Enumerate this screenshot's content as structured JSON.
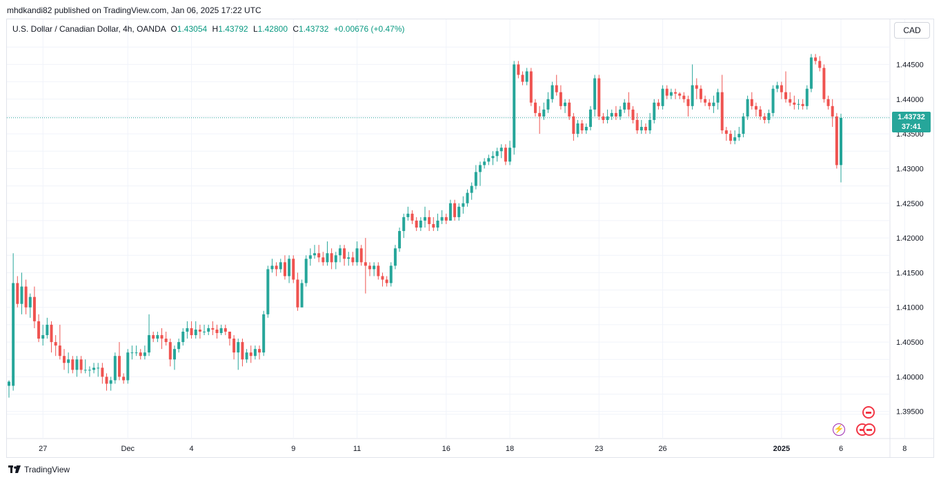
{
  "header": {
    "published_line": "mhdkandi82 published on TradingView.com, Jan 06, 2025 17:22 UTC"
  },
  "symbol": {
    "name": "U.S. Dollar / Canadian Dollar, 4h, OANDA",
    "open_label": "O",
    "open": "1.43054",
    "high_label": "H",
    "high": "1.43792",
    "low_label": "L",
    "low": "1.42800",
    "close_label": "C",
    "close": "1.43732",
    "change": "+0.00676 (+0.47%)"
  },
  "toolbar": {
    "currency": "CAD"
  },
  "last_price": {
    "price": "1.43732",
    "countdown": "37:41"
  },
  "footer": {
    "logo_text": "TradingView"
  },
  "colors": {
    "up": "#26a69a",
    "down": "#ef5350",
    "grid": "#f0f3fa",
    "text": "#131722"
  },
  "icons": [
    "lightning-icon",
    "canada-flag-icon"
  ],
  "chart_data": {
    "type": "candlestick",
    "y_ticks": [
      "1.39500",
      "1.40000",
      "1.40500",
      "1.41000",
      "1.41500",
      "1.42000",
      "1.42500",
      "1.43000",
      "1.43500",
      "1.44000",
      "1.44500"
    ],
    "y_tick_values": [
      1.395,
      1.4,
      1.405,
      1.41,
      1.415,
      1.42,
      1.425,
      1.43,
      1.435,
      1.44,
      1.445
    ],
    "ylim": [
      1.3911,
      1.4515
    ],
    "x_ticks": [
      {
        "label": "27",
        "index": 8
      },
      {
        "label": "Dec",
        "index": 28
      },
      {
        "label": "4",
        "index": 43
      },
      {
        "label": "9",
        "index": 67
      },
      {
        "label": "11",
        "index": 82
      },
      {
        "label": "16",
        "index": 103
      },
      {
        "label": "18",
        "index": 118
      },
      {
        "label": "23",
        "index": 139
      },
      {
        "label": "26",
        "index": 154
      },
      {
        "label": "2025",
        "index": 182
      },
      {
        "label": "6",
        "index": 196
      },
      {
        "label": "8",
        "index": 211
      }
    ],
    "x_count": 213,
    "last_price": 1.43732,
    "candles": [
      [
        1.3987,
        1.3993,
        1.397,
        1.3995
      ],
      [
        1.3987,
        1.4135,
        1.398,
        1.4178
      ],
      [
        1.4135,
        1.4105,
        1.41,
        1.4145
      ],
      [
        1.4105,
        1.413,
        1.409,
        1.415
      ],
      [
        1.413,
        1.41,
        1.409,
        1.414
      ],
      [
        1.41,
        1.4115,
        1.4085,
        1.412
      ],
      [
        1.4115,
        1.408,
        1.407,
        1.413
      ],
      [
        1.408,
        1.4055,
        1.405,
        1.409
      ],
      [
        1.4055,
        1.406,
        1.4045,
        1.4075
      ],
      [
        1.406,
        1.4075,
        1.4055,
        1.4085
      ],
      [
        1.4075,
        1.405,
        1.4035,
        1.408
      ],
      [
        1.405,
        1.4045,
        1.403,
        1.406
      ],
      [
        1.4045,
        1.403,
        1.4025,
        1.4075
      ],
      [
        1.403,
        1.402,
        1.401,
        1.404
      ],
      [
        1.402,
        1.4025,
        1.4005,
        1.4035
      ],
      [
        1.4025,
        1.401,
        1.4005,
        1.403
      ],
      [
        1.401,
        1.4025,
        1.4,
        1.403
      ],
      [
        1.4025,
        1.401,
        1.4005,
        1.403
      ],
      [
        1.401,
        1.401,
        1.4005,
        1.4025
      ],
      [
        1.401,
        1.401,
        1.4,
        1.4015
      ],
      [
        1.401,
        1.4013,
        1.4005,
        1.402
      ],
      [
        1.4013,
        1.4013,
        1.4,
        1.402
      ],
      [
        1.4013,
        1.4,
        1.399,
        1.402
      ],
      [
        1.4,
        1.399,
        1.398,
        1.4005
      ],
      [
        1.399,
        1.3995,
        1.398,
        1.4
      ],
      [
        1.3995,
        1.403,
        1.399,
        1.4035
      ],
      [
        1.403,
        1.4,
        1.3995,
        1.405
      ],
      [
        1.4,
        1.3995,
        1.399,
        1.4005
      ],
      [
        1.3995,
        1.4035,
        1.399,
        1.404
      ],
      [
        1.4035,
        1.4035,
        1.4025,
        1.4045
      ],
      [
        1.4035,
        1.4035,
        1.403,
        1.4045
      ],
      [
        1.4035,
        1.403,
        1.4025,
        1.404
      ],
      [
        1.403,
        1.4035,
        1.4025,
        1.4045
      ],
      [
        1.4035,
        1.406,
        1.403,
        1.409
      ],
      [
        1.406,
        1.4055,
        1.405,
        1.4065
      ],
      [
        1.4055,
        1.406,
        1.405,
        1.4065
      ],
      [
        1.406,
        1.4055,
        1.404,
        1.407
      ],
      [
        1.4055,
        1.405,
        1.4045,
        1.4065
      ],
      [
        1.405,
        1.4025,
        1.4015,
        1.4055
      ],
      [
        1.4025,
        1.404,
        1.401,
        1.4045
      ],
      [
        1.404,
        1.405,
        1.4035,
        1.4055
      ],
      [
        1.405,
        1.4065,
        1.4045,
        1.407
      ],
      [
        1.4065,
        1.407,
        1.4055,
        1.408
      ],
      [
        1.407,
        1.406,
        1.4055,
        1.408
      ],
      [
        1.406,
        1.4068,
        1.4055,
        1.408
      ],
      [
        1.4068,
        1.4065,
        1.4055,
        1.4075
      ],
      [
        1.4065,
        1.4065,
        1.406,
        1.4075
      ],
      [
        1.4065,
        1.407,
        1.406,
        1.4075
      ],
      [
        1.407,
        1.4068,
        1.406,
        1.408
      ],
      [
        1.4068,
        1.4063,
        1.4055,
        1.4075
      ],
      [
        1.4063,
        1.407,
        1.406,
        1.4075
      ],
      [
        1.407,
        1.4065,
        1.406,
        1.4075
      ],
      [
        1.4065,
        1.4055,
        1.4045,
        1.4065
      ],
      [
        1.4055,
        1.4035,
        1.4025,
        1.406
      ],
      [
        1.4035,
        1.405,
        1.401,
        1.4055
      ],
      [
        1.405,
        1.4025,
        1.4015,
        1.4055
      ],
      [
        1.4025,
        1.4035,
        1.402,
        1.404
      ],
      [
        1.4035,
        1.403,
        1.402,
        1.4045
      ],
      [
        1.403,
        1.404,
        1.4025,
        1.4045
      ],
      [
        1.404,
        1.4035,
        1.4025,
        1.4045
      ],
      [
        1.4035,
        1.409,
        1.403,
        1.4095
      ],
      [
        1.409,
        1.4155,
        1.4085,
        1.416
      ],
      [
        1.4155,
        1.416,
        1.415,
        1.417
      ],
      [
        1.416,
        1.4155,
        1.4145,
        1.4165
      ],
      [
        1.4155,
        1.4165,
        1.415,
        1.417
      ],
      [
        1.4165,
        1.4145,
        1.414,
        1.4175
      ],
      [
        1.4145,
        1.417,
        1.4135,
        1.4175
      ],
      [
        1.417,
        1.414,
        1.4135,
        1.4175
      ],
      [
        1.414,
        1.41,
        1.4095,
        1.415
      ],
      [
        1.41,
        1.4135,
        1.41,
        1.414
      ],
      [
        1.4135,
        1.417,
        1.413,
        1.4175
      ],
      [
        1.417,
        1.4175,
        1.416,
        1.4185
      ],
      [
        1.4175,
        1.4178,
        1.417,
        1.419
      ],
      [
        1.4178,
        1.4172,
        1.4165,
        1.419
      ],
      [
        1.4172,
        1.4165,
        1.416,
        1.418
      ],
      [
        1.4165,
        1.4178,
        1.416,
        1.4195
      ],
      [
        1.4178,
        1.4165,
        1.4155,
        1.4185
      ],
      [
        1.4165,
        1.4175,
        1.4155,
        1.418
      ],
      [
        1.4175,
        1.4185,
        1.4165,
        1.419
      ],
      [
        1.4185,
        1.417,
        1.416,
        1.419
      ],
      [
        1.417,
        1.4172,
        1.416,
        1.418
      ],
      [
        1.4172,
        1.4165,
        1.416,
        1.418
      ],
      [
        1.4165,
        1.4185,
        1.416,
        1.4195
      ],
      [
        1.4185,
        1.4165,
        1.416,
        1.419
      ],
      [
        1.4165,
        1.416,
        1.412,
        1.42
      ],
      [
        1.416,
        1.4155,
        1.4145,
        1.4165
      ],
      [
        1.4155,
        1.416,
        1.4145,
        1.4165
      ],
      [
        1.416,
        1.4145,
        1.414,
        1.4165
      ],
      [
        1.4145,
        1.414,
        1.413,
        1.415
      ],
      [
        1.414,
        1.4135,
        1.413,
        1.4145
      ],
      [
        1.4135,
        1.416,
        1.413,
        1.4165
      ],
      [
        1.416,
        1.4185,
        1.4155,
        1.419
      ],
      [
        1.4185,
        1.421,
        1.418,
        1.4215
      ],
      [
        1.421,
        1.423,
        1.42,
        1.4235
      ],
      [
        1.423,
        1.4235,
        1.4225,
        1.4245
      ],
      [
        1.4235,
        1.4225,
        1.422,
        1.424
      ],
      [
        1.4225,
        1.4215,
        1.421,
        1.423
      ],
      [
        1.4215,
        1.4225,
        1.421,
        1.423
      ],
      [
        1.4225,
        1.423,
        1.4215,
        1.4245
      ],
      [
        1.423,
        1.422,
        1.421,
        1.424
      ],
      [
        1.422,
        1.4215,
        1.421,
        1.423
      ],
      [
        1.4215,
        1.4225,
        1.421,
        1.4235
      ],
      [
        1.4225,
        1.423,
        1.422,
        1.424
      ],
      [
        1.423,
        1.4225,
        1.422,
        1.4235
      ],
      [
        1.4225,
        1.425,
        1.4225,
        1.4255
      ],
      [
        1.425,
        1.423,
        1.4225,
        1.4255
      ],
      [
        1.423,
        1.4245,
        1.4225,
        1.425
      ],
      [
        1.4245,
        1.425,
        1.4235,
        1.426
      ],
      [
        1.425,
        1.4265,
        1.4245,
        1.427
      ],
      [
        1.4265,
        1.4275,
        1.4255,
        1.428
      ],
      [
        1.4275,
        1.4295,
        1.427,
        1.4305
      ],
      [
        1.4295,
        1.4305,
        1.4275,
        1.431
      ],
      [
        1.4305,
        1.431,
        1.43,
        1.4315
      ],
      [
        1.431,
        1.4315,
        1.4305,
        1.432
      ],
      [
        1.4315,
        1.4318,
        1.4305,
        1.4325
      ],
      [
        1.4318,
        1.4325,
        1.431,
        1.433
      ],
      [
        1.4325,
        1.433,
        1.4315,
        1.4335
      ],
      [
        1.433,
        1.431,
        1.4305,
        1.4335
      ],
      [
        1.431,
        1.433,
        1.4305,
        1.434
      ],
      [
        1.433,
        1.445,
        1.432,
        1.4455
      ],
      [
        1.445,
        1.4435,
        1.443,
        1.4455
      ],
      [
        1.4435,
        1.4425,
        1.442,
        1.444
      ],
      [
        1.4425,
        1.444,
        1.442,
        1.4445
      ],
      [
        1.444,
        1.4395,
        1.439,
        1.4445
      ],
      [
        1.4395,
        1.438,
        1.4375,
        1.44
      ],
      [
        1.438,
        1.4375,
        1.435,
        1.439
      ],
      [
        1.4375,
        1.4385,
        1.437,
        1.4395
      ],
      [
        1.4385,
        1.44,
        1.438,
        1.441
      ],
      [
        1.44,
        1.442,
        1.4395,
        1.4425
      ],
      [
        1.442,
        1.441,
        1.4405,
        1.4435
      ],
      [
        1.441,
        1.439,
        1.4385,
        1.442
      ],
      [
        1.439,
        1.4395,
        1.438,
        1.44
      ],
      [
        1.4395,
        1.4375,
        1.437,
        1.44
      ],
      [
        1.4375,
        1.435,
        1.434,
        1.438
      ],
      [
        1.435,
        1.4365,
        1.4345,
        1.437
      ],
      [
        1.4365,
        1.4355,
        1.435,
        1.437
      ],
      [
        1.4355,
        1.436,
        1.435,
        1.4365
      ],
      [
        1.436,
        1.4385,
        1.4355,
        1.439
      ],
      [
        1.4385,
        1.443,
        1.4375,
        1.4435
      ],
      [
        1.443,
        1.4375,
        1.437,
        1.4435
      ],
      [
        1.4375,
        1.437,
        1.4365,
        1.438
      ],
      [
        1.437,
        1.4375,
        1.4365,
        1.4385
      ],
      [
        1.4375,
        1.438,
        1.437,
        1.4385
      ],
      [
        1.438,
        1.4375,
        1.437,
        1.439
      ],
      [
        1.4375,
        1.4385,
        1.437,
        1.439
      ],
      [
        1.4385,
        1.4395,
        1.438,
        1.44
      ],
      [
        1.4395,
        1.4385,
        1.4375,
        1.441
      ],
      [
        1.4385,
        1.437,
        1.4365,
        1.439
      ],
      [
        1.437,
        1.4355,
        1.435,
        1.438
      ],
      [
        1.4355,
        1.436,
        1.435,
        1.437
      ],
      [
        1.436,
        1.4355,
        1.435,
        1.4365
      ],
      [
        1.4355,
        1.437,
        1.435,
        1.438
      ],
      [
        1.437,
        1.4395,
        1.4365,
        1.44
      ],
      [
        1.4395,
        1.439,
        1.4385,
        1.44
      ],
      [
        1.439,
        1.4415,
        1.4385,
        1.442
      ],
      [
        1.4415,
        1.4405,
        1.44,
        1.442
      ],
      [
        1.4405,
        1.441,
        1.44,
        1.4415
      ],
      [
        1.441,
        1.4408,
        1.44,
        1.4415
      ],
      [
        1.4408,
        1.4405,
        1.44,
        1.441
      ],
      [
        1.4405,
        1.44,
        1.4395,
        1.441
      ],
      [
        1.44,
        1.439,
        1.4375,
        1.4405
      ],
      [
        1.439,
        1.442,
        1.4385,
        1.445
      ],
      [
        1.442,
        1.4415,
        1.44,
        1.443
      ],
      [
        1.4415,
        1.44,
        1.4395,
        1.442
      ],
      [
        1.44,
        1.4395,
        1.439,
        1.4405
      ],
      [
        1.4395,
        1.439,
        1.4385,
        1.44
      ],
      [
        1.439,
        1.4395,
        1.438,
        1.4405
      ],
      [
        1.4395,
        1.441,
        1.4385,
        1.4415
      ],
      [
        1.441,
        1.4355,
        1.435,
        1.4435
      ],
      [
        1.4355,
        1.435,
        1.434,
        1.436
      ],
      [
        1.435,
        1.434,
        1.4335,
        1.4355
      ],
      [
        1.434,
        1.4345,
        1.4335,
        1.4355
      ],
      [
        1.4345,
        1.435,
        1.434,
        1.436
      ],
      [
        1.435,
        1.4375,
        1.4345,
        1.438
      ],
      [
        1.4375,
        1.44,
        1.437,
        1.4405
      ],
      [
        1.44,
        1.439,
        1.4385,
        1.441
      ],
      [
        1.439,
        1.4385,
        1.4375,
        1.4395
      ],
      [
        1.4385,
        1.4375,
        1.437,
        1.439
      ],
      [
        1.4375,
        1.437,
        1.4365,
        1.438
      ],
      [
        1.437,
        1.438,
        1.4365,
        1.4385
      ],
      [
        1.438,
        1.4415,
        1.4375,
        1.442
      ],
      [
        1.4415,
        1.442,
        1.441,
        1.4425
      ],
      [
        1.442,
        1.441,
        1.44,
        1.4425
      ],
      [
        1.441,
        1.44,
        1.4395,
        1.444
      ],
      [
        1.44,
        1.4395,
        1.439,
        1.441
      ],
      [
        1.4395,
        1.4392,
        1.4385,
        1.4405
      ],
      [
        1.4392,
        1.4393,
        1.4385,
        1.44
      ],
      [
        1.4393,
        1.439,
        1.4385,
        1.44
      ],
      [
        1.439,
        1.4415,
        1.4385,
        1.442
      ],
      [
        1.4415,
        1.446,
        1.441,
        1.4465
      ],
      [
        1.446,
        1.4455,
        1.445,
        1.4465
      ],
      [
        1.4455,
        1.4445,
        1.444,
        1.4462
      ],
      [
        1.4445,
        1.44,
        1.4395,
        1.445
      ],
      [
        1.44,
        1.439,
        1.4385,
        1.4405
      ],
      [
        1.439,
        1.4375,
        1.436,
        1.44
      ],
      [
        1.4375,
        1.4305,
        1.43,
        1.438
      ],
      [
        1.4305,
        1.4373,
        1.428,
        1.4379
      ]
    ]
  }
}
